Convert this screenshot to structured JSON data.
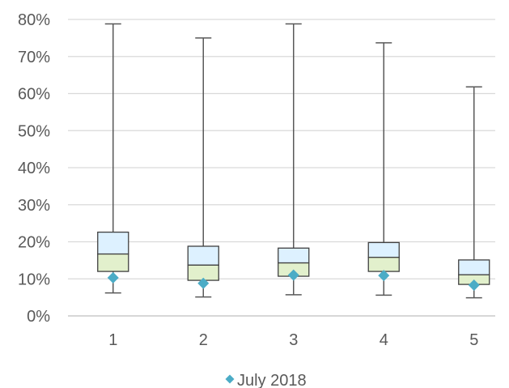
{
  "chart_data": {
    "type": "box",
    "categories": [
      "1",
      "2",
      "3",
      "4",
      "5"
    ],
    "y_axis": {
      "min": 0,
      "max": 0.8,
      "step": 0.1,
      "tick_labels": [
        "0%",
        "10%",
        "20%",
        "30%",
        "40%",
        "50%",
        "60%",
        "70%",
        "80%"
      ]
    },
    "grid": "horizontal",
    "boxes": [
      {
        "category": "1",
        "min": 0.062,
        "q1": 0.12,
        "median": 0.167,
        "q3": 0.226,
        "max": 0.788
      },
      {
        "category": "2",
        "min": 0.051,
        "q1": 0.096,
        "median": 0.137,
        "q3": 0.188,
        "max": 0.75
      },
      {
        "category": "3",
        "min": 0.057,
        "q1": 0.107,
        "median": 0.143,
        "q3": 0.183,
        "max": 0.788
      },
      {
        "category": "4",
        "min": 0.056,
        "q1": 0.12,
        "median": 0.158,
        "q3": 0.198,
        "max": 0.737
      },
      {
        "category": "5",
        "min": 0.049,
        "q1": 0.085,
        "median": 0.111,
        "q3": 0.151,
        "max": 0.618
      }
    ],
    "series": [
      {
        "name": "July 2018",
        "marker": "diamond",
        "values": [
          0.103,
          0.088,
          0.11,
          0.109,
          0.083
        ]
      }
    ],
    "legend": {
      "position": "bottom",
      "label": "July 2018"
    },
    "colors": {
      "upper_box": "#DDF1FF",
      "lower_box": "#E2F0CC",
      "box_stroke": "#404040",
      "whisker": "#595959",
      "marker": "#4BACC6",
      "grid": "#D9D9D9",
      "axis": "#BFBFBF",
      "text": "#595959"
    }
  }
}
